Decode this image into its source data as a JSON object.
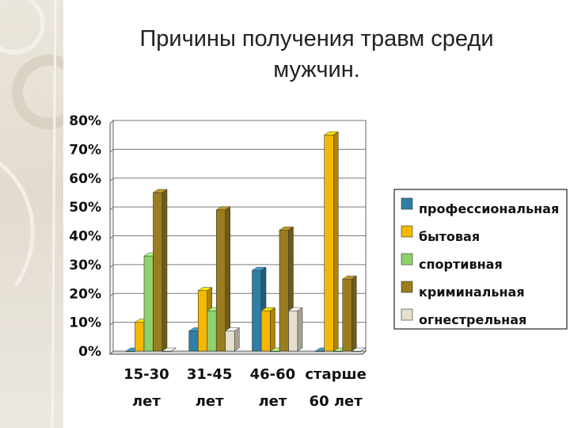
{
  "slide": {
    "title_lines": [
      "Причины получения травм среди",
      "мужчин."
    ]
  },
  "chart_data": {
    "type": "bar",
    "title": "Причины получения травм среди мужчин.",
    "categories": [
      [
        "15-30",
        "лет"
      ],
      [
        "31-45",
        "лет"
      ],
      [
        "46-60",
        "лет"
      ],
      [
        "старше",
        "60 лет"
      ]
    ],
    "series": [
      {
        "name": "профессиональная",
        "color": "#2f7fa6",
        "values": [
          0,
          7,
          28,
          0
        ]
      },
      {
        "name": "бытовая",
        "color": "#f5b800",
        "values": [
          10,
          21,
          14,
          75
        ]
      },
      {
        "name": "спортивная",
        "color": "#8fd16a",
        "values": [
          33,
          14,
          0,
          0
        ]
      },
      {
        "name": "криминальная",
        "color": "#9a7d1e",
        "values": [
          55,
          49,
          42,
          25
        ]
      },
      {
        "name": "огнестрельная",
        "color": "#e6dfcc",
        "values": [
          0,
          7,
          14,
          0
        ]
      }
    ],
    "ylim": [
      0,
      80
    ],
    "yticks": [
      "0%",
      "10%",
      "20%",
      "30%",
      "40%",
      "50%",
      "60%",
      "70%",
      "80%"
    ],
    "grid": true,
    "legend": "right",
    "bar_style": "3d"
  }
}
